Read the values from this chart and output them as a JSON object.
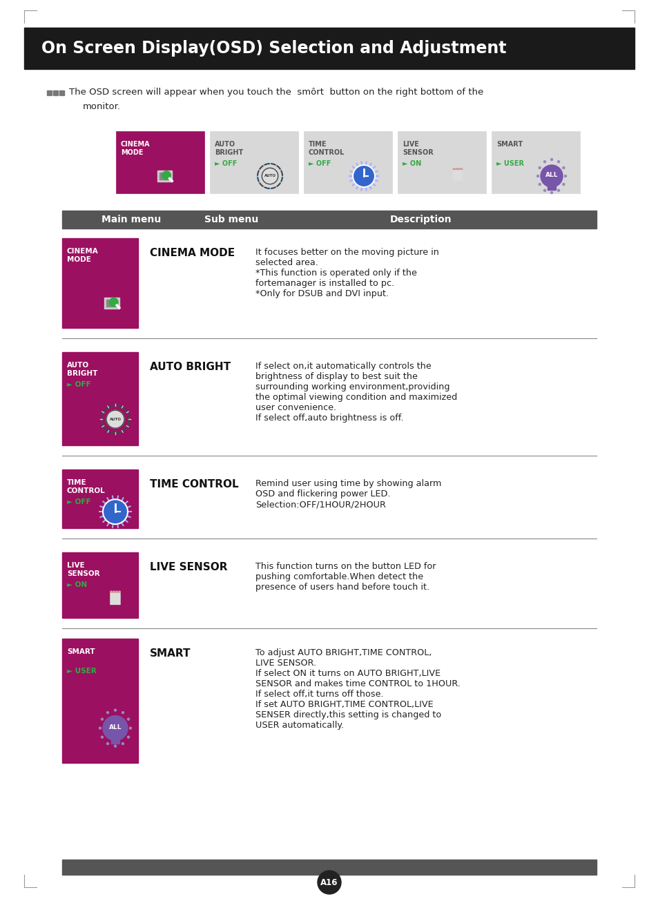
{
  "title": "On Screen Display(OSD) Selection and Adjustment",
  "title_bg": "#1a1a1a",
  "title_color": "#ffffff",
  "page_bg": "#ffffff",
  "header_bg": "#555555",
  "header_color": "#ffffff",
  "header_cols": [
    "Main menu",
    "Sub menu",
    "Description"
  ],
  "pink_color": "#9b1060",
  "green_color": "#33aa44",
  "border_color": "#bbbbbb",
  "menu_items": [
    {
      "label_line1": "CINEMA",
      "label_line2": "MODE",
      "sub": "CINEMA MODE",
      "desc": "It focuses better on the moving picture in\nselected area.\n*This function is operated only if the\nfortemanager is installed to pc.\n*Only for DSUB and DVI input.",
      "status": null,
      "icon": "cinema"
    },
    {
      "label_line1": "AUTO",
      "label_line2": "BRIGHT",
      "sub": "AUTO BRIGHT",
      "desc": "If select on,it automatically controls the\nbrightness of display to best suit the\nsurrounding working environment,providing\nthe optimal viewing condition and maximized\nuser convenience.\nIf select off,auto brightness is off.",
      "status": "► OFF",
      "icon": "auto"
    },
    {
      "label_line1": "TIME",
      "label_line2": "CONTROL",
      "sub": "TIME CONTROL",
      "desc": "Remind user using time by showing alarm\nOSD and flickering power LED.\nSelection:OFF/1HOUR/2HOUR",
      "status": "► OFF",
      "icon": "time"
    },
    {
      "label_line1": "LIVE",
      "label_line2": "SENSOR",
      "sub": "LIVE SENSOR",
      "desc": "This function turns on the button LED for\npushing comfortable.When detect the\npresence of users hand before touch it.",
      "status": "► ON",
      "icon": "live"
    },
    {
      "label_line1": "SMART",
      "label_line2": "",
      "sub": "SMART",
      "desc": "To adjust AUTO BRIGHT,TIME CONTROL,\nLIVE SENSOR.\nIf select ON it turns on AUTO BRIGHT,LIVE\nSENSOR and makes time CONTROL to 1HOUR.\nIf select off,it turns off those.\nIf set AUTO BRIGHT,TIME CONTROL,LIVE\nSENSER directly,this setting is changed to\nUSER automatically.",
      "status": "► USER",
      "icon": "smart"
    }
  ],
  "top_menu_items": [
    {
      "label_line1": "CINEMA",
      "label_line2": "MODE",
      "status": null,
      "color": "#9b1060",
      "text_color": "#ffffff",
      "icon": "cinema"
    },
    {
      "label_line1": "AUTO",
      "label_line2": "BRIGHT",
      "status": "► OFF",
      "color": "#d8d8d8",
      "text_color": "#555555",
      "icon": "auto"
    },
    {
      "label_line1": "TIME",
      "label_line2": "CONTROL",
      "status": "► OFF",
      "color": "#d8d8d8",
      "text_color": "#555555",
      "icon": "time"
    },
    {
      "label_line1": "LIVE",
      "label_line2": "SENSOR",
      "status": "► ON",
      "color": "#d8d8d8",
      "text_color": "#555555",
      "icon": "live"
    },
    {
      "label_line1": "SMART",
      "label_line2": "",
      "status": "► USER",
      "color": "#d8d8d8",
      "text_color": "#555555",
      "icon": "smart"
    }
  ],
  "page_num": "A16"
}
